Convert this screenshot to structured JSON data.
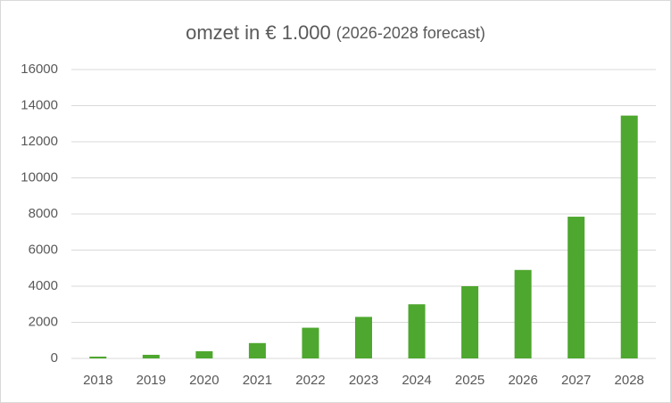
{
  "chart_data": {
    "type": "bar",
    "title": "omzet in € 1.000",
    "subtitle": "(2026-2028 forecast)",
    "categories": [
      "2018",
      "2019",
      "2020",
      "2021",
      "2022",
      "2023",
      "2024",
      "2025",
      "2026",
      "2027",
      "2028"
    ],
    "values": [
      100,
      200,
      400,
      850,
      1700,
      2300,
      3000,
      4000,
      4900,
      7850,
      13450
    ],
    "color": "#4ea72e",
    "ylim": [
      0,
      16000
    ],
    "yticks": [
      0,
      2000,
      4000,
      6000,
      8000,
      10000,
      12000,
      14000,
      16000
    ],
    "grid": true
  }
}
